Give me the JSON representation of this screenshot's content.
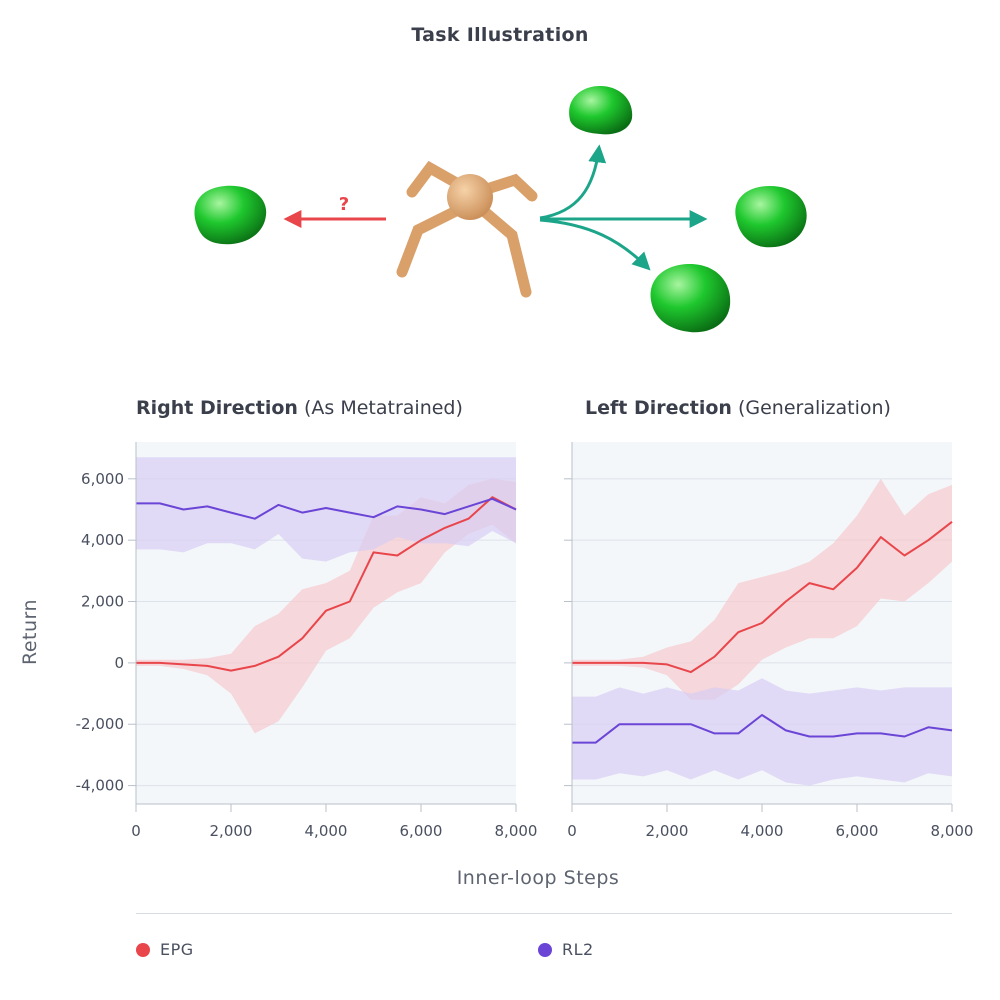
{
  "header": {
    "title": "Task Illustration"
  },
  "illustration": {
    "question_mark": "?"
  },
  "colors": {
    "epg": "#e8464b",
    "rl2": "#6a45d6",
    "band_epg": "#f6c9cd",
    "band_rl2": "#d8cdf3",
    "plot_bg": "#f3f7fa",
    "arrow_left": "#e8464b",
    "arrow_right": "#1da58a",
    "grid": "#dde3ea"
  },
  "x_axis_label": "Inner-loop Steps",
  "y_axis_label": "Return",
  "legend": [
    {
      "label": "EPG",
      "color": "#e8464b"
    },
    {
      "label": "RL2",
      "color": "#6a45d6"
    }
  ],
  "chart_data": [
    {
      "type": "line",
      "title_bold": "Right Direction",
      "title_rest": " (As Metatrained)",
      "xlim": [
        0,
        8000
      ],
      "ylim": [
        -4600,
        7200
      ],
      "x_ticks": [
        0,
        2000,
        4000,
        6000,
        8000
      ],
      "x_tick_labels": [
        "0",
        "2,000",
        "4,000",
        "6,000",
        "8,000"
      ],
      "y_ticks": [
        -4000,
        -2000,
        0,
        2000,
        4000,
        6000
      ],
      "y_tick_labels": [
        "-4,000",
        "-2,000",
        "0",
        "2,000",
        "4,000",
        "6,000"
      ],
      "series": [
        {
          "name": "EPG",
          "x": [
            0,
            500,
            1000,
            1500,
            2000,
            2500,
            3000,
            3500,
            4000,
            4500,
            5000,
            5500,
            6000,
            6500,
            7000,
            7500,
            8000
          ],
          "y": [
            0,
            0,
            -50,
            -100,
            -250,
            -100,
            200,
            800,
            1700,
            2000,
            3600,
            3500,
            4000,
            4400,
            4700,
            5400,
            5000
          ],
          "lower": [
            -100,
            -100,
            -200,
            -400,
            -1000,
            -2300,
            -1900,
            -800,
            400,
            800,
            1800,
            2300,
            2600,
            3600,
            4200,
            4500,
            3900
          ],
          "upper": [
            100,
            100,
            100,
            150,
            300,
            1200,
            1600,
            2400,
            2600,
            3000,
            4800,
            4800,
            5400,
            5200,
            5800,
            6000,
            5900
          ]
        },
        {
          "name": "RL2",
          "x": [
            0,
            500,
            1000,
            1500,
            2000,
            2500,
            3000,
            3500,
            4000,
            4500,
            5000,
            5500,
            6000,
            6500,
            7000,
            7500,
            8000
          ],
          "y": [
            5200,
            5200,
            5000,
            5100,
            4900,
            4700,
            5150,
            4900,
            5050,
            4900,
            4750,
            5100,
            5000,
            4850,
            5100,
            5350,
            5000
          ],
          "lower": [
            3700,
            3700,
            3600,
            3900,
            3900,
            3700,
            4200,
            3400,
            3300,
            3600,
            3700,
            4100,
            3900,
            3900,
            3800,
            4300,
            3900
          ],
          "upper": [
            6700,
            6700,
            6700,
            6700,
            6700,
            6700,
            6700,
            6700,
            6700,
            6700,
            6700,
            6700,
            6700,
            6700,
            6700,
            6700,
            6700
          ]
        }
      ]
    },
    {
      "type": "line",
      "title_bold": "Left Direction",
      "title_rest": " (Generalization)",
      "xlim": [
        0,
        8000
      ],
      "ylim": [
        -4600,
        7200
      ],
      "x_ticks": [
        0,
        2000,
        4000,
        6000,
        8000
      ],
      "x_tick_labels": [
        "0",
        "2,000",
        "4,000",
        "6,000",
        "8,000"
      ],
      "y_ticks": [
        -4000,
        -2000,
        0,
        2000,
        4000,
        6000
      ],
      "y_tick_labels": [],
      "series": [
        {
          "name": "EPG",
          "x": [
            0,
            500,
            1000,
            1500,
            2000,
            2500,
            3000,
            3500,
            4000,
            4500,
            5000,
            5500,
            6000,
            6500,
            7000,
            7500,
            8000
          ],
          "y": [
            0,
            0,
            0,
            0,
            -50,
            -300,
            200,
            1000,
            1300,
            2000,
            2600,
            2400,
            3100,
            4100,
            3500,
            4000,
            4600
          ],
          "lower": [
            -100,
            -100,
            -100,
            -150,
            -400,
            -1200,
            -1200,
            -700,
            100,
            500,
            800,
            800,
            1200,
            2100,
            2000,
            2600,
            3300
          ],
          "upper": [
            100,
            100,
            100,
            200,
            500,
            700,
            1400,
            2600,
            2800,
            3000,
            3300,
            3900,
            4800,
            6000,
            4800,
            5500,
            5800
          ]
        },
        {
          "name": "RL2",
          "x": [
            0,
            500,
            1000,
            1500,
            2000,
            2500,
            3000,
            3500,
            4000,
            4500,
            5000,
            5500,
            6000,
            6500,
            7000,
            7500,
            8000
          ],
          "y": [
            -2600,
            -2600,
            -2000,
            -2000,
            -2000,
            -2000,
            -2300,
            -2300,
            -1700,
            -2200,
            -2400,
            -2400,
            -2300,
            -2300,
            -2400,
            -2100,
            -2200
          ],
          "lower": [
            -3800,
            -3800,
            -3600,
            -3700,
            -3500,
            -3800,
            -3500,
            -3800,
            -3500,
            -3900,
            -4000,
            -3800,
            -3700,
            -3800,
            -3900,
            -3600,
            -3700
          ],
          "upper": [
            -1100,
            -1100,
            -800,
            -1000,
            -800,
            -1000,
            -800,
            -900,
            -500,
            -900,
            -1000,
            -900,
            -800,
            -900,
            -800,
            -800,
            -800
          ]
        }
      ]
    }
  ]
}
